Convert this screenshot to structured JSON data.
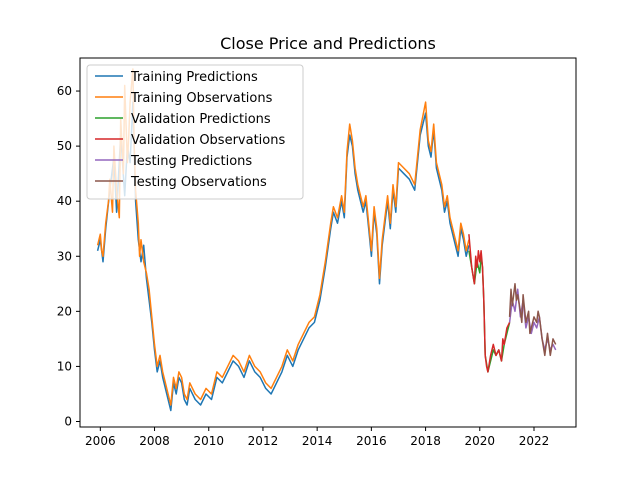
{
  "chart_data": {
    "type": "line",
    "title": "Close Price and Predictions",
    "xlabel": "",
    "ylabel": "",
    "xlim": [
      2005.25,
      2023.55
    ],
    "ylim": [
      -1,
      66
    ],
    "x_ticks": [
      2006,
      2008,
      2010,
      2012,
      2014,
      2016,
      2018,
      2020,
      2022
    ],
    "y_ticks": [
      0,
      10,
      20,
      30,
      40,
      50,
      60
    ],
    "grid": false,
    "legend_position": "top-left",
    "series": [
      {
        "name": "Training Predictions",
        "color": "#1f77b4",
        "x": [
          2005.9,
          2006.0,
          2006.1,
          2006.2,
          2006.35,
          2006.5,
          2006.6,
          2006.75,
          2006.9,
          2007.0,
          2007.1,
          2007.2,
          2007.3,
          2007.4,
          2007.5,
          2007.6,
          2007.7,
          2007.8,
          2007.9,
          2008.0,
          2008.1,
          2008.2,
          2008.3,
          2008.4,
          2008.5,
          2008.6,
          2008.7,
          2008.8,
          2008.9,
          2009.0,
          2009.1,
          2009.2,
          2009.3,
          2009.5,
          2009.7,
          2009.9,
          2010.1,
          2010.3,
          2010.5,
          2010.7,
          2010.9,
          2011.1,
          2011.3,
          2011.5,
          2011.7,
          2011.9,
          2012.1,
          2012.3,
          2012.5,
          2012.7,
          2012.9,
          2013.1,
          2013.3,
          2013.5,
          2013.7,
          2013.9,
          2014.1,
          2014.3,
          2014.5,
          2014.6,
          2014.75,
          2014.9,
          2015.0,
          2015.1,
          2015.2,
          2015.3,
          2015.4,
          2015.5,
          2015.6,
          2015.7,
          2015.8,
          2015.9,
          2016.0,
          2016.1,
          2016.2,
          2016.3,
          2016.4,
          2016.5,
          2016.6,
          2016.7,
          2016.8,
          2016.9,
          2017.0,
          2017.2,
          2017.4,
          2017.6,
          2017.8,
          2018.0,
          2018.1,
          2018.2,
          2018.3,
          2018.4,
          2018.5,
          2018.6,
          2018.7,
          2018.8,
          2018.9,
          2019.0,
          2019.1,
          2019.2,
          2019.3,
          2019.4,
          2019.5,
          2019.6
        ],
        "y": [
          31,
          33,
          29,
          35,
          42,
          48,
          38,
          52,
          41,
          50,
          47,
          58,
          40,
          33,
          29,
          32,
          26,
          22,
          18,
          13,
          9,
          11,
          8,
          6,
          4,
          2,
          7,
          5,
          8,
          7,
          4,
          3,
          6,
          4,
          3,
          5,
          4,
          8,
          7,
          9,
          11,
          10,
          8,
          11,
          9,
          8,
          6,
          5,
          7,
          9,
          12,
          10,
          13,
          15,
          17,
          18,
          22,
          28,
          35,
          38,
          36,
          40,
          37,
          48,
          52,
          50,
          45,
          42,
          40,
          38,
          40,
          35,
          30,
          38,
          34,
          25,
          32,
          36,
          40,
          35,
          42,
          38,
          46,
          45,
          44,
          42,
          52,
          56,
          50,
          48,
          53,
          46,
          44,
          42,
          38,
          40,
          36,
          34,
          32,
          30,
          35,
          33,
          30,
          32
        ]
      },
      {
        "name": "Training Observations",
        "color": "#ff7f0e",
        "x": [
          2005.9,
          2006.0,
          2006.05,
          2006.1,
          2006.2,
          2006.3,
          2006.35,
          2006.45,
          2006.5,
          2006.6,
          2006.7,
          2006.75,
          2006.85,
          2006.9,
          2007.0,
          2007.05,
          2007.1,
          2007.2,
          2007.25,
          2007.3,
          2007.4,
          2007.45,
          2007.5,
          2007.6,
          2007.7,
          2007.8,
          2007.9,
          2008.0,
          2008.1,
          2008.2,
          2008.3,
          2008.4,
          2008.5,
          2008.6,
          2008.7,
          2008.8,
          2008.9,
          2009.0,
          2009.1,
          2009.2,
          2009.3,
          2009.5,
          2009.7,
          2009.9,
          2010.1,
          2010.3,
          2010.5,
          2010.7,
          2010.9,
          2011.1,
          2011.3,
          2011.5,
          2011.7,
          2011.9,
          2012.1,
          2012.3,
          2012.5,
          2012.7,
          2012.9,
          2013.1,
          2013.3,
          2013.5,
          2013.7,
          2013.9,
          2014.1,
          2014.3,
          2014.5,
          2014.6,
          2014.75,
          2014.9,
          2015.0,
          2015.1,
          2015.2,
          2015.3,
          2015.4,
          2015.5,
          2015.6,
          2015.7,
          2015.8,
          2015.9,
          2016.0,
          2016.1,
          2016.2,
          2016.3,
          2016.4,
          2016.5,
          2016.6,
          2016.7,
          2016.8,
          2016.9,
          2017.0,
          2017.2,
          2017.4,
          2017.6,
          2017.8,
          2018.0,
          2018.1,
          2018.2,
          2018.3,
          2018.4,
          2018.5,
          2018.6,
          2018.7,
          2018.8,
          2018.9,
          2019.0,
          2019.1,
          2019.2,
          2019.3,
          2019.4,
          2019.5,
          2019.6
        ],
        "y": [
          32,
          34,
          31,
          30,
          36,
          40,
          44,
          38,
          50,
          42,
          37,
          55,
          45,
          61,
          47,
          52,
          58,
          64,
          50,
          42,
          36,
          30,
          33,
          29,
          27,
          24,
          19,
          14,
          10,
          12,
          9,
          7,
          5,
          3,
          8,
          6,
          9,
          8,
          5,
          4,
          7,
          5,
          4,
          6,
          5,
          9,
          8,
          10,
          12,
          11,
          9,
          12,
          10,
          9,
          7,
          6,
          8,
          10,
          13,
          11,
          14,
          16,
          18,
          19,
          23,
          29,
          36,
          39,
          37,
          41,
          38,
          49,
          54,
          51,
          46,
          43,
          41,
          39,
          41,
          36,
          31,
          39,
          35,
          26,
          33,
          37,
          41,
          36,
          43,
          39,
          47,
          46,
          45,
          43,
          53,
          58,
          51,
          49,
          54,
          47,
          45,
          43,
          39,
          41,
          37,
          35,
          33,
          31,
          36,
          34,
          31,
          33
        ]
      },
      {
        "name": "Validation Predictions",
        "color": "#2ca02c",
        "x": [
          2019.6,
          2019.7,
          2019.8,
          2019.9,
          2020.0,
          2020.05,
          2020.1,
          2020.15,
          2020.2,
          2020.3,
          2020.4,
          2020.5,
          2020.6,
          2020.7,
          2020.8,
          2020.9,
          2021.0,
          2021.1
        ],
        "y": [
          31,
          28,
          25,
          29,
          27,
          30,
          28,
          22,
          12,
          9,
          11,
          13,
          12,
          13,
          11,
          14,
          16,
          18
        ]
      },
      {
        "name": "Validation Observations",
        "color": "#d62728",
        "x": [
          2019.6,
          2019.65,
          2019.7,
          2019.8,
          2019.85,
          2019.9,
          2019.95,
          2020.0,
          2020.05,
          2020.1,
          2020.15,
          2020.2,
          2020.25,
          2020.3,
          2020.4,
          2020.5,
          2020.6,
          2020.7,
          2020.8,
          2020.85,
          2020.9,
          2021.0,
          2021.1
        ],
        "y": [
          34,
          31,
          28,
          25,
          30,
          28,
          31,
          29,
          31,
          28,
          22,
          12,
          10,
          9,
          12,
          14,
          12,
          13,
          11,
          15,
          14,
          17,
          18
        ]
      },
      {
        "name": "Testing Predictions",
        "color": "#9467bd",
        "x": [
          2021.1,
          2021.2,
          2021.3,
          2021.4,
          2021.5,
          2021.6,
          2021.7,
          2021.8,
          2021.9,
          2022.0,
          2022.1,
          2022.2,
          2022.3,
          2022.4,
          2022.5,
          2022.6,
          2022.7,
          2022.8
        ],
        "y": [
          18,
          22,
          20,
          24,
          19,
          22,
          17,
          19,
          16,
          18,
          17,
          19,
          15,
          13,
          15,
          13,
          14,
          13
        ]
      },
      {
        "name": "Testing Observations",
        "color": "#8c564b",
        "x": [
          2021.1,
          2021.15,
          2021.2,
          2021.3,
          2021.35,
          2021.4,
          2021.5,
          2021.55,
          2021.6,
          2021.7,
          2021.8,
          2021.85,
          2021.9,
          2022.0,
          2022.1,
          2022.15,
          2022.2,
          2022.3,
          2022.4,
          2022.5,
          2022.6,
          2022.7,
          2022.8
        ],
        "y": [
          19,
          24,
          21,
          25,
          22,
          23,
          20,
          18,
          23,
          18,
          20,
          16,
          17,
          19,
          18,
          20,
          19,
          15,
          12,
          16,
          12,
          15,
          14
        ]
      }
    ]
  }
}
